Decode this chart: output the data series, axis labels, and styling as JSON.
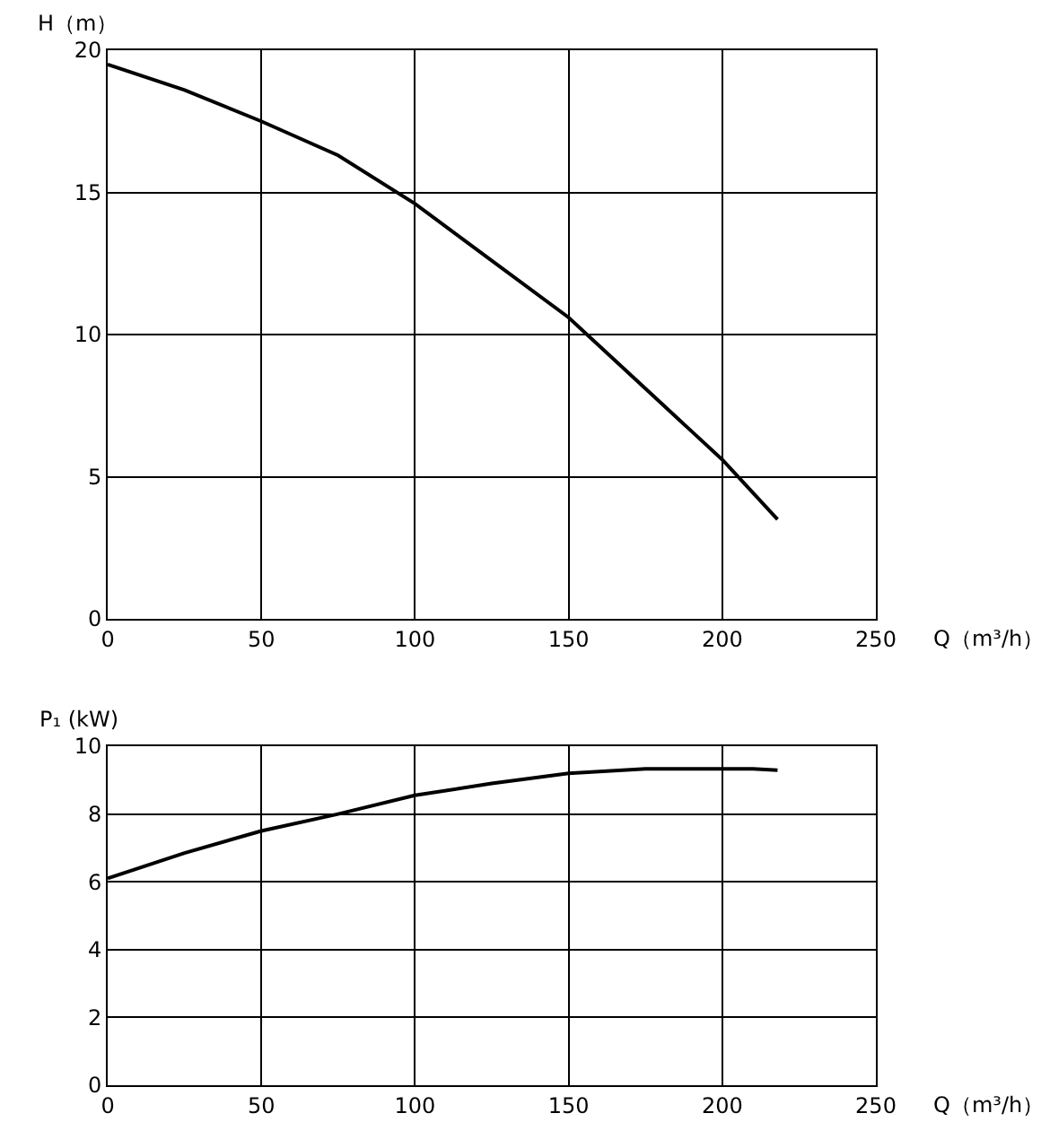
{
  "chart_data": [
    {
      "type": "line",
      "xlabel": "Q（m³/h）",
      "ylabel": "H（m）",
      "x": [
        0,
        25,
        50,
        75,
        100,
        125,
        150,
        175,
        200,
        218
      ],
      "series": [
        {
          "color": "#000000",
          "values": [
            19.5,
            18.6,
            17.5,
            16.3,
            14.6,
            12.6,
            10.6,
            8.1,
            5.6,
            3.5
          ]
        }
      ],
      "xlim": [
        0,
        250
      ],
      "xticks": [
        0,
        50,
        100,
        150,
        200,
        250
      ],
      "ylim": [
        0,
        20
      ],
      "yticks": [
        0,
        5,
        10,
        15,
        20
      ],
      "grid": true
    },
    {
      "type": "line",
      "xlabel": "Q（m³/h）",
      "ylabel": "P₁ (kW)",
      "x": [
        0,
        25,
        50,
        75,
        100,
        125,
        150,
        175,
        200,
        210,
        218
      ],
      "series": [
        {
          "color": "#000000",
          "values": [
            6.1,
            6.85,
            7.5,
            8.0,
            8.55,
            8.9,
            9.2,
            9.33,
            9.33,
            9.33,
            9.29
          ]
        }
      ],
      "xlim": [
        0,
        250
      ],
      "xticks": [
        0,
        50,
        100,
        150,
        200,
        250
      ],
      "ylim": [
        0,
        10
      ],
      "yticks": [
        0,
        2,
        4,
        6,
        8,
        10
      ],
      "grid": true
    }
  ]
}
